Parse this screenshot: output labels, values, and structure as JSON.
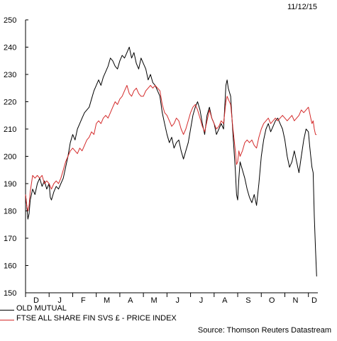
{
  "header": {
    "date": "11/12/15"
  },
  "source": "Source: Thomson Reuters Datastream",
  "colors": {
    "series_0": "#000000",
    "series_1": "#d42a2a",
    "axis": "#000000"
  },
  "chart_data": {
    "type": "line",
    "title": "",
    "xlabel": "",
    "ylabel": "",
    "ylim": [
      150,
      250
    ],
    "yticks": [
      150,
      160,
      170,
      180,
      190,
      200,
      210,
      220,
      230,
      240,
      250
    ],
    "xlim": [
      0,
      12.4
    ],
    "xticks": [
      {
        "label": "D",
        "pos": 0.45
      },
      {
        "label": "J",
        "pos": 1.45
      },
      {
        "label": "F",
        "pos": 2.45
      },
      {
        "label": "M",
        "pos": 3.45
      },
      {
        "label": "A",
        "pos": 4.45
      },
      {
        "label": "M",
        "pos": 5.45
      },
      {
        "label": "J",
        "pos": 6.45
      },
      {
        "label": "J",
        "pos": 7.45
      },
      {
        "label": "A",
        "pos": 8.45
      },
      {
        "label": "S",
        "pos": 9.45
      },
      {
        "label": "O",
        "pos": 10.45
      },
      {
        "label": "N",
        "pos": 11.45
      },
      {
        "label": "D",
        "pos": 12.25
      }
    ],
    "grid": false,
    "legend_position": "bottom-left",
    "series": [
      {
        "name": "OLD MUTUAL",
        "color": "#000000",
        "points": [
          [
            0.0,
            186
          ],
          [
            0.05,
            182
          ],
          [
            0.1,
            177
          ],
          [
            0.15,
            179
          ],
          [
            0.2,
            184
          ],
          [
            0.3,
            188
          ],
          [
            0.4,
            186
          ],
          [
            0.5,
            190
          ],
          [
            0.6,
            192
          ],
          [
            0.7,
            189
          ],
          [
            0.8,
            191
          ],
          [
            0.9,
            188
          ],
          [
            1.0,
            190
          ],
          [
            1.05,
            185
          ],
          [
            1.1,
            184
          ],
          [
            1.2,
            187
          ],
          [
            1.3,
            189
          ],
          [
            1.4,
            188
          ],
          [
            1.5,
            190
          ],
          [
            1.6,
            192
          ],
          [
            1.7,
            196
          ],
          [
            1.8,
            200
          ],
          [
            1.9,
            205
          ],
          [
            2.0,
            208
          ],
          [
            2.1,
            206
          ],
          [
            2.2,
            210
          ],
          [
            2.3,
            212
          ],
          [
            2.4,
            214
          ],
          [
            2.5,
            216
          ],
          [
            2.6,
            217
          ],
          [
            2.7,
            218
          ],
          [
            2.8,
            221
          ],
          [
            2.9,
            224
          ],
          [
            3.0,
            226
          ],
          [
            3.1,
            228
          ],
          [
            3.2,
            226
          ],
          [
            3.3,
            229
          ],
          [
            3.4,
            231
          ],
          [
            3.5,
            233
          ],
          [
            3.6,
            236
          ],
          [
            3.7,
            235
          ],
          [
            3.8,
            233
          ],
          [
            3.9,
            232
          ],
          [
            4.0,
            235
          ],
          [
            4.1,
            237
          ],
          [
            4.2,
            236
          ],
          [
            4.3,
            238
          ],
          [
            4.4,
            240
          ],
          [
            4.5,
            236
          ],
          [
            4.6,
            238
          ],
          [
            4.7,
            234
          ],
          [
            4.8,
            232
          ],
          [
            4.9,
            236
          ],
          [
            5.0,
            234
          ],
          [
            5.1,
            232
          ],
          [
            5.2,
            228
          ],
          [
            5.3,
            230
          ],
          [
            5.4,
            227
          ],
          [
            5.5,
            226
          ],
          [
            5.6,
            224
          ],
          [
            5.7,
            222
          ],
          [
            5.8,
            216
          ],
          [
            5.9,
            212
          ],
          [
            6.0,
            208
          ],
          [
            6.1,
            205
          ],
          [
            6.2,
            207
          ],
          [
            6.3,
            203
          ],
          [
            6.4,
            205
          ],
          [
            6.5,
            206
          ],
          [
            6.6,
            202
          ],
          [
            6.7,
            199
          ],
          [
            6.8,
            202
          ],
          [
            6.9,
            205
          ],
          [
            7.0,
            210
          ],
          [
            7.1,
            215
          ],
          [
            7.2,
            218
          ],
          [
            7.3,
            220
          ],
          [
            7.4,
            217
          ],
          [
            7.5,
            212
          ],
          [
            7.6,
            208
          ],
          [
            7.7,
            215
          ],
          [
            7.8,
            218
          ],
          [
            7.9,
            214
          ],
          [
            8.0,
            212
          ],
          [
            8.1,
            208
          ],
          [
            8.2,
            210
          ],
          [
            8.3,
            212
          ],
          [
            8.4,
            210
          ],
          [
            8.45,
            218
          ],
          [
            8.5,
            226
          ],
          [
            8.55,
            228
          ],
          [
            8.6,
            225
          ],
          [
            8.7,
            222
          ],
          [
            8.8,
            208
          ],
          [
            8.9,
            195
          ],
          [
            8.95,
            186
          ],
          [
            9.0,
            184
          ],
          [
            9.05,
            192
          ],
          [
            9.1,
            198
          ],
          [
            9.2,
            195
          ],
          [
            9.3,
            192
          ],
          [
            9.4,
            188
          ],
          [
            9.5,
            185
          ],
          [
            9.6,
            183
          ],
          [
            9.7,
            186
          ],
          [
            9.8,
            182
          ],
          [
            9.9,
            190
          ],
          [
            10.0,
            200
          ],
          [
            10.1,
            206
          ],
          [
            10.2,
            210
          ],
          [
            10.3,
            212
          ],
          [
            10.4,
            209
          ],
          [
            10.5,
            211
          ],
          [
            10.6,
            213
          ],
          [
            10.7,
            214
          ],
          [
            10.8,
            212
          ],
          [
            10.9,
            210
          ],
          [
            11.0,
            206
          ],
          [
            11.1,
            200
          ],
          [
            11.2,
            196
          ],
          [
            11.3,
            198
          ],
          [
            11.4,
            202
          ],
          [
            11.5,
            198
          ],
          [
            11.6,
            194
          ],
          [
            11.7,
            200
          ],
          [
            11.8,
            206
          ],
          [
            11.9,
            210
          ],
          [
            12.0,
            209
          ],
          [
            12.05,
            204
          ],
          [
            12.1,
            200
          ],
          [
            12.15,
            196
          ],
          [
            12.2,
            194
          ],
          [
            12.25,
            178
          ],
          [
            12.3,
            166
          ],
          [
            12.35,
            156
          ]
        ]
      },
      {
        "name": "FTSE ALL SHARE FIN SVS £ - PRICE INDEX",
        "color": "#d42a2a",
        "points": [
          [
            0.0,
            186
          ],
          [
            0.05,
            182
          ],
          [
            0.1,
            180
          ],
          [
            0.15,
            182
          ],
          [
            0.2,
            187
          ],
          [
            0.25,
            190
          ],
          [
            0.3,
            193
          ],
          [
            0.4,
            192
          ],
          [
            0.5,
            193
          ],
          [
            0.6,
            192
          ],
          [
            0.7,
            193
          ],
          [
            0.8,
            190
          ],
          [
            0.9,
            191
          ],
          [
            1.0,
            190
          ],
          [
            1.1,
            188
          ],
          [
            1.2,
            190
          ],
          [
            1.3,
            191
          ],
          [
            1.4,
            190
          ],
          [
            1.5,
            192
          ],
          [
            1.6,
            195
          ],
          [
            1.7,
            198
          ],
          [
            1.8,
            200
          ],
          [
            1.9,
            202
          ],
          [
            2.0,
            203
          ],
          [
            2.1,
            202
          ],
          [
            2.2,
            201
          ],
          [
            2.3,
            203
          ],
          [
            2.4,
            202
          ],
          [
            2.5,
            204
          ],
          [
            2.6,
            206
          ],
          [
            2.7,
            207
          ],
          [
            2.8,
            209
          ],
          [
            2.9,
            208
          ],
          [
            3.0,
            212
          ],
          [
            3.1,
            213
          ],
          [
            3.2,
            212
          ],
          [
            3.3,
            214
          ],
          [
            3.4,
            215
          ],
          [
            3.5,
            214
          ],
          [
            3.6,
            216
          ],
          [
            3.7,
            218
          ],
          [
            3.8,
            220
          ],
          [
            3.9,
            219
          ],
          [
            4.0,
            221
          ],
          [
            4.1,
            222
          ],
          [
            4.2,
            224
          ],
          [
            4.3,
            226
          ],
          [
            4.4,
            223
          ],
          [
            4.5,
            222
          ],
          [
            4.6,
            224
          ],
          [
            4.7,
            225
          ],
          [
            4.8,
            223
          ],
          [
            4.9,
            222
          ],
          [
            5.0,
            222
          ],
          [
            5.1,
            224
          ],
          [
            5.2,
            225
          ],
          [
            5.3,
            226
          ],
          [
            5.4,
            225
          ],
          [
            5.5,
            226
          ],
          [
            5.6,
            225
          ],
          [
            5.7,
            224
          ],
          [
            5.8,
            219
          ],
          [
            5.9,
            216
          ],
          [
            6.0,
            215
          ],
          [
            6.1,
            213
          ],
          [
            6.2,
            211
          ],
          [
            6.3,
            212
          ],
          [
            6.4,
            214
          ],
          [
            6.5,
            213
          ],
          [
            6.6,
            210
          ],
          [
            6.7,
            208
          ],
          [
            6.8,
            210
          ],
          [
            6.9,
            213
          ],
          [
            7.0,
            216
          ],
          [
            7.1,
            218
          ],
          [
            7.2,
            219
          ],
          [
            7.3,
            217
          ],
          [
            7.4,
            214
          ],
          [
            7.5,
            211
          ],
          [
            7.6,
            209
          ],
          [
            7.7,
            213
          ],
          [
            7.8,
            217
          ],
          [
            7.9,
            214
          ],
          [
            8.0,
            212
          ],
          [
            8.1,
            210
          ],
          [
            8.2,
            211
          ],
          [
            8.3,
            213
          ],
          [
            8.4,
            212
          ],
          [
            8.45,
            216
          ],
          [
            8.5,
            220
          ],
          [
            8.55,
            222
          ],
          [
            8.6,
            221
          ],
          [
            8.7,
            219
          ],
          [
            8.8,
            210
          ],
          [
            8.9,
            202
          ],
          [
            8.95,
            197
          ],
          [
            9.0,
            198
          ],
          [
            9.05,
            202
          ],
          [
            9.1,
            200
          ],
          [
            9.2,
            202
          ],
          [
            9.3,
            205
          ],
          [
            9.4,
            206
          ],
          [
            9.5,
            205
          ],
          [
            9.6,
            206
          ],
          [
            9.7,
            204
          ],
          [
            9.8,
            203
          ],
          [
            9.9,
            207
          ],
          [
            10.0,
            210
          ],
          [
            10.1,
            212
          ],
          [
            10.2,
            213
          ],
          [
            10.3,
            214
          ],
          [
            10.4,
            212
          ],
          [
            10.5,
            213
          ],
          [
            10.6,
            214
          ],
          [
            10.7,
            213
          ],
          [
            10.8,
            214
          ],
          [
            10.9,
            215
          ],
          [
            11.0,
            214
          ],
          [
            11.1,
            213
          ],
          [
            11.2,
            214
          ],
          [
            11.3,
            215
          ],
          [
            11.4,
            213
          ],
          [
            11.5,
            214
          ],
          [
            11.6,
            215
          ],
          [
            11.7,
            217
          ],
          [
            11.8,
            216
          ],
          [
            11.9,
            217
          ],
          [
            12.0,
            218
          ],
          [
            12.05,
            216
          ],
          [
            12.1,
            214
          ],
          [
            12.15,
            212
          ],
          [
            12.2,
            213
          ],
          [
            12.25,
            210
          ],
          [
            12.3,
            208
          ],
          [
            12.35,
            208
          ]
        ]
      }
    ]
  }
}
